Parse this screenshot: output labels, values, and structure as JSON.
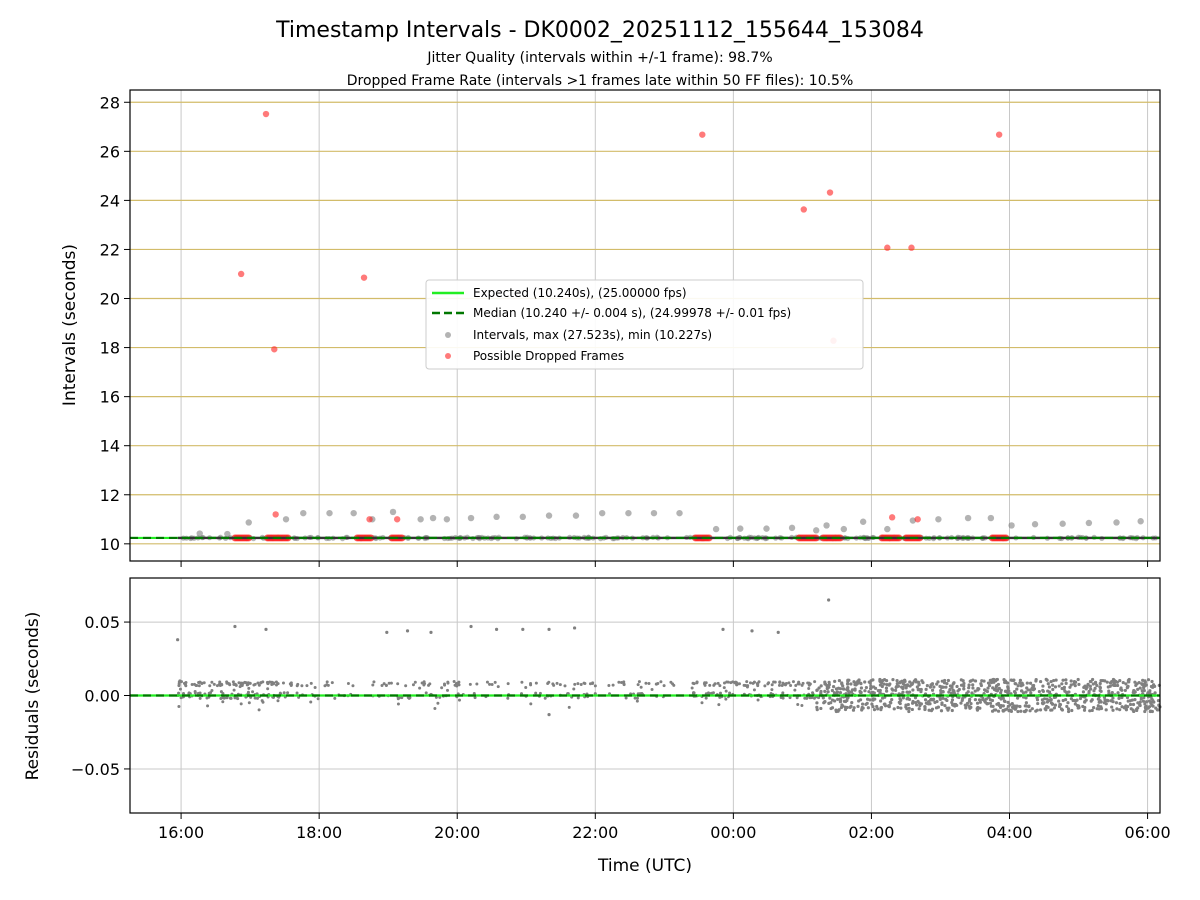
{
  "figure": {
    "title": "Timestamp Intervals - DK0002_20251112_155644_153084",
    "subtitle_1": "Jitter Quality (intervals within +/-1 frame): 98.7%",
    "subtitle_2": "Dropped Frame Rate (intervals >1 frames late within 50 FF files): 10.5%"
  },
  "colors": {
    "expected": "#22ee22",
    "median": "#007700",
    "intervals": "#808080",
    "dropped": "#ff2222",
    "hline": "#d2bc6a",
    "grid": "#c8c8c8"
  },
  "chart_data": [
    {
      "type": "scatter",
      "title": "Timestamp Intervals - DK0002_20251112_155644_153084",
      "xlabel": "",
      "ylabel": "Intervals (seconds)",
      "xlim_hours": [
        15.26,
        30.18
      ],
      "ylim": [
        9.3,
        28.5
      ],
      "yticks": [
        10,
        12,
        14,
        16,
        18,
        20,
        22,
        24,
        26,
        28
      ],
      "grid": true,
      "legend_location": "center",
      "reference_lines": [
        {
          "name": "Expected (10.240s), (25.00000 fps)",
          "y": 10.24,
          "style": "solid",
          "color": "#22ee22"
        },
        {
          "name": "Median (10.240 +/- 0.004 s), (24.99978 +/- 0.01 fps)",
          "y": 10.24,
          "style": "dashed",
          "color": "#007700"
        }
      ],
      "series": [
        {
          "name": "Intervals, max (27.523s), min (10.227s)",
          "color": "#808080",
          "x": [
            16.27,
            16.67,
            16.98,
            17.52,
            17.77,
            18.15,
            18.5,
            18.77,
            19.07,
            19.47,
            19.65,
            19.85,
            20.2,
            20.57,
            20.95,
            21.33,
            21.72,
            22.1,
            22.48,
            22.85,
            23.22,
            23.75,
            24.1,
            24.48,
            24.85,
            25.2,
            25.35,
            25.6,
            25.88,
            26.23,
            26.6,
            26.97,
            27.4,
            27.73,
            28.03,
            28.37,
            28.77,
            29.15,
            29.55,
            29.9
          ],
          "y": [
            10.42,
            10.4,
            10.87,
            11.0,
            11.25,
            11.25,
            11.25,
            11.0,
            11.3,
            11.0,
            11.05,
            11.0,
            11.05,
            11.1,
            11.1,
            11.15,
            11.15,
            11.25,
            11.25,
            11.25,
            11.25,
            10.6,
            10.62,
            10.62,
            10.65,
            10.55,
            10.75,
            10.6,
            10.9,
            10.6,
            10.95,
            11.0,
            11.05,
            11.05,
            10.75,
            10.8,
            10.82,
            10.85,
            10.87,
            10.92
          ]
        },
        {
          "name": "Possible Dropped Frames",
          "color": "#ff2222",
          "x": [
            16.87,
            17.23,
            17.35,
            17.37,
            18.65,
            18.73,
            19.13,
            23.55,
            25.02,
            25.4,
            25.45,
            26.23,
            26.3,
            26.58,
            26.67,
            27.85
          ],
          "y": [
            21.0,
            27.52,
            17.93,
            11.2,
            20.85,
            11.0,
            11.0,
            26.68,
            23.63,
            24.32,
            18.28,
            22.07,
            11.08,
            22.07,
            11.0,
            26.68
          ]
        }
      ],
      "dropped_frame_clusters": [
        [
          16.78,
          17.0
        ],
        [
          17.25,
          17.55
        ],
        [
          18.55,
          18.75
        ],
        [
          19.05,
          19.2
        ],
        [
          23.45,
          23.65
        ],
        [
          24.95,
          25.2
        ],
        [
          25.3,
          25.55
        ],
        [
          26.15,
          26.4
        ],
        [
          26.5,
          26.7
        ],
        [
          27.75,
          27.95
        ]
      ]
    },
    {
      "type": "scatter",
      "xlabel": "Time (UTC)",
      "ylabel": "Residuals (seconds)",
      "xlim_hours": [
        15.26,
        30.18
      ],
      "ylim": [
        -0.08,
        0.08
      ],
      "yticks": [
        -0.05,
        0.0,
        0.05
      ],
      "ytick_labels": [
        "−0.05",
        "0.00",
        "0.05"
      ],
      "xticks_hours": [
        16,
        18,
        20,
        22,
        24,
        26,
        28,
        30
      ],
      "xtick_labels": [
        "16:00",
        "18:00",
        "20:00",
        "22:00",
        "00:00",
        "02:00",
        "04:00",
        "06:00"
      ],
      "grid": true,
      "series": [
        {
          "name": "",
          "color": "#808080",
          "outliers_x": [
            15.95,
            16.78,
            17.23,
            18.98,
            19.28,
            19.62,
            20.2,
            20.57,
            20.95,
            21.33,
            21.7,
            23.85,
            24.27,
            24.65,
            25.38,
            21.33
          ],
          "outliers_y": [
            0.038,
            0.047,
            0.045,
            0.043,
            0.044,
            0.043,
            0.047,
            0.045,
            0.045,
            0.045,
            0.046,
            0.045,
            0.044,
            0.043,
            0.065,
            -0.013
          ]
        }
      ]
    }
  ]
}
